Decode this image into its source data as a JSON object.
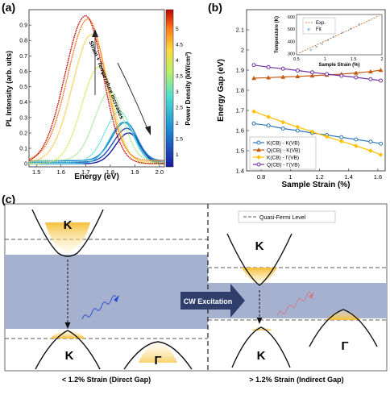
{
  "panel_a": {
    "label": "(a)",
    "xlabel": "Energy (eV)",
    "ylabel": "PL Intensity (arb. uits)",
    "x_ticks": [
      "1.5",
      "1.6",
      "1.7",
      "1.8",
      "1.9",
      "2.0"
    ],
    "y_ticks": [
      "0",
      "0.1",
      "0.2",
      "0.3",
      "0.4",
      "0.5",
      "0.6",
      "0.7",
      "0.8",
      "0.9"
    ],
    "annotation": "Strain + Temperature increases",
    "colorbar_label": "Power Density (kW/cm²)",
    "colorbar_ticks": [
      "5",
      "4.5",
      "4",
      "3.5",
      "3",
      "2.5",
      "2",
      "1.5",
      "1"
    ]
  },
  "panel_b": {
    "label": "(b)",
    "xlabel": "Sample Strain (%)",
    "ylabel": "Energy Gap (eV)",
    "x_ticks": [
      "0.8",
      "1",
      "1.2",
      "1.4",
      "1.6"
    ],
    "y_ticks": [
      "1.4",
      "1.5",
      "1.6",
      "1.7",
      "1.8",
      "1.9",
      "2",
      "2.1"
    ],
    "legend": [
      "K(CB) - K(VB)",
      "Q(CB) - K(VB)",
      "K(CB) - Γ(VB)",
      "Q(CB) - Γ(VB)"
    ],
    "inset": {
      "xlabel": "Sample Strain (%)",
      "ylabel": "Temperature (K)",
      "x_ticks": [
        "0.5",
        "1",
        "1.5",
        "2"
      ],
      "y_ticks": [
        "300",
        "400",
        "500",
        "600"
      ],
      "legend": [
        "Exp.",
        "Fit"
      ]
    }
  },
  "panel_c": {
    "label": "(c)",
    "legend": "Quasi-Fermi Level",
    "left_caption": "< 1.2% Strain (Direct Gap)",
    "right_caption": "> 1.2% Strain (Indirect Gap)",
    "arrow_label": "CW Excitation",
    "valley_K": "K",
    "valley_Gamma": "Γ"
  },
  "colors": {
    "K_K": "#2e75b6",
    "Q_K": "#c55a11",
    "K_G": "#ffc000",
    "Q_G": "#7030a0",
    "gap_band": "#a6b0cf",
    "arrow": "#2f3e6b"
  },
  "chart_data": [
    {
      "type": "line",
      "x": [
        0.75,
        0.85,
        0.95,
        1.05,
        1.15,
        1.25,
        1.35,
        1.45,
        1.55,
        1.62
      ],
      "xlabel": "Sample Strain (%)",
      "ylabel": "Energy Gap (eV)",
      "xlim": [
        0.7,
        1.65
      ],
      "ylim": [
        1.4,
        2.2
      ],
      "series": [
        {
          "name": "K(CB) - K(VB)",
          "values": [
            1.635,
            1.625,
            1.61,
            1.6,
            1.588,
            1.578,
            1.567,
            1.556,
            1.545,
            1.535
          ]
        },
        {
          "name": "Q(CB) - K(VB)",
          "values": [
            1.86,
            1.863,
            1.866,
            1.869,
            1.872,
            1.876,
            1.88,
            1.886,
            1.893,
            1.9
          ]
        },
        {
          "name": "K(CB) - Γ(VB)",
          "values": [
            1.695,
            1.668,
            1.642,
            1.618,
            1.594,
            1.57,
            1.547,
            1.524,
            1.5,
            1.48
          ]
        },
        {
          "name": "Q(CB) - Γ(VB)",
          "values": [
            1.925,
            1.915,
            1.907,
            1.898,
            1.889,
            1.88,
            1.872,
            1.864,
            1.855,
            1.848
          ]
        }
      ]
    },
    {
      "type": "scatter",
      "xlabel": "Sample Strain (%)",
      "ylabel": "Temperature (K)",
      "xlim": [
        0.5,
        2.0
      ],
      "ylim": [
        290,
        620
      ],
      "series": [
        {
          "name": "Exp.",
          "x": [
            0.75,
            0.85,
            0.95,
            1.05,
            1.15,
            1.3,
            1.45,
            1.6
          ],
          "values": [
            330,
            355,
            380,
            410,
            440,
            470,
            505,
            540
          ]
        },
        {
          "name": "Fit",
          "x": [
            0.55,
            1.95
          ],
          "values": [
            305,
            610
          ]
        }
      ]
    },
    {
      "type": "line",
      "xlabel": "Energy (eV)",
      "ylabel": "PL Intensity (arb. uits)",
      "xlim": [
        1.47,
        2.02
      ],
      "ylim": [
        -0.02,
        1.0
      ],
      "peaks": [
        {
          "power": 1.0,
          "center": 1.875,
          "amplitude": 0.2
        },
        {
          "power": 1.5,
          "center": 1.868,
          "amplitude": 0.22
        },
        {
          "power": 2.0,
          "center": 1.862,
          "amplitude": 0.25
        },
        {
          "power": 2.5,
          "center": 1.855,
          "amplitude": 0.27
        },
        {
          "power": 3.0,
          "center": 1.838,
          "amplitude": 0.33
        },
        {
          "power": 3.5,
          "center": 1.8,
          "amplitude": 0.45
        },
        {
          "power": 4.0,
          "center": 1.755,
          "amplitude": 0.63
        },
        {
          "power": 4.5,
          "center": 1.725,
          "amplitude": 0.83
        },
        {
          "power": 5.0,
          "center": 1.71,
          "amplitude": 0.92
        },
        {
          "power": 5.5,
          "center": 1.7,
          "amplitude": 0.96
        }
      ]
    }
  ]
}
